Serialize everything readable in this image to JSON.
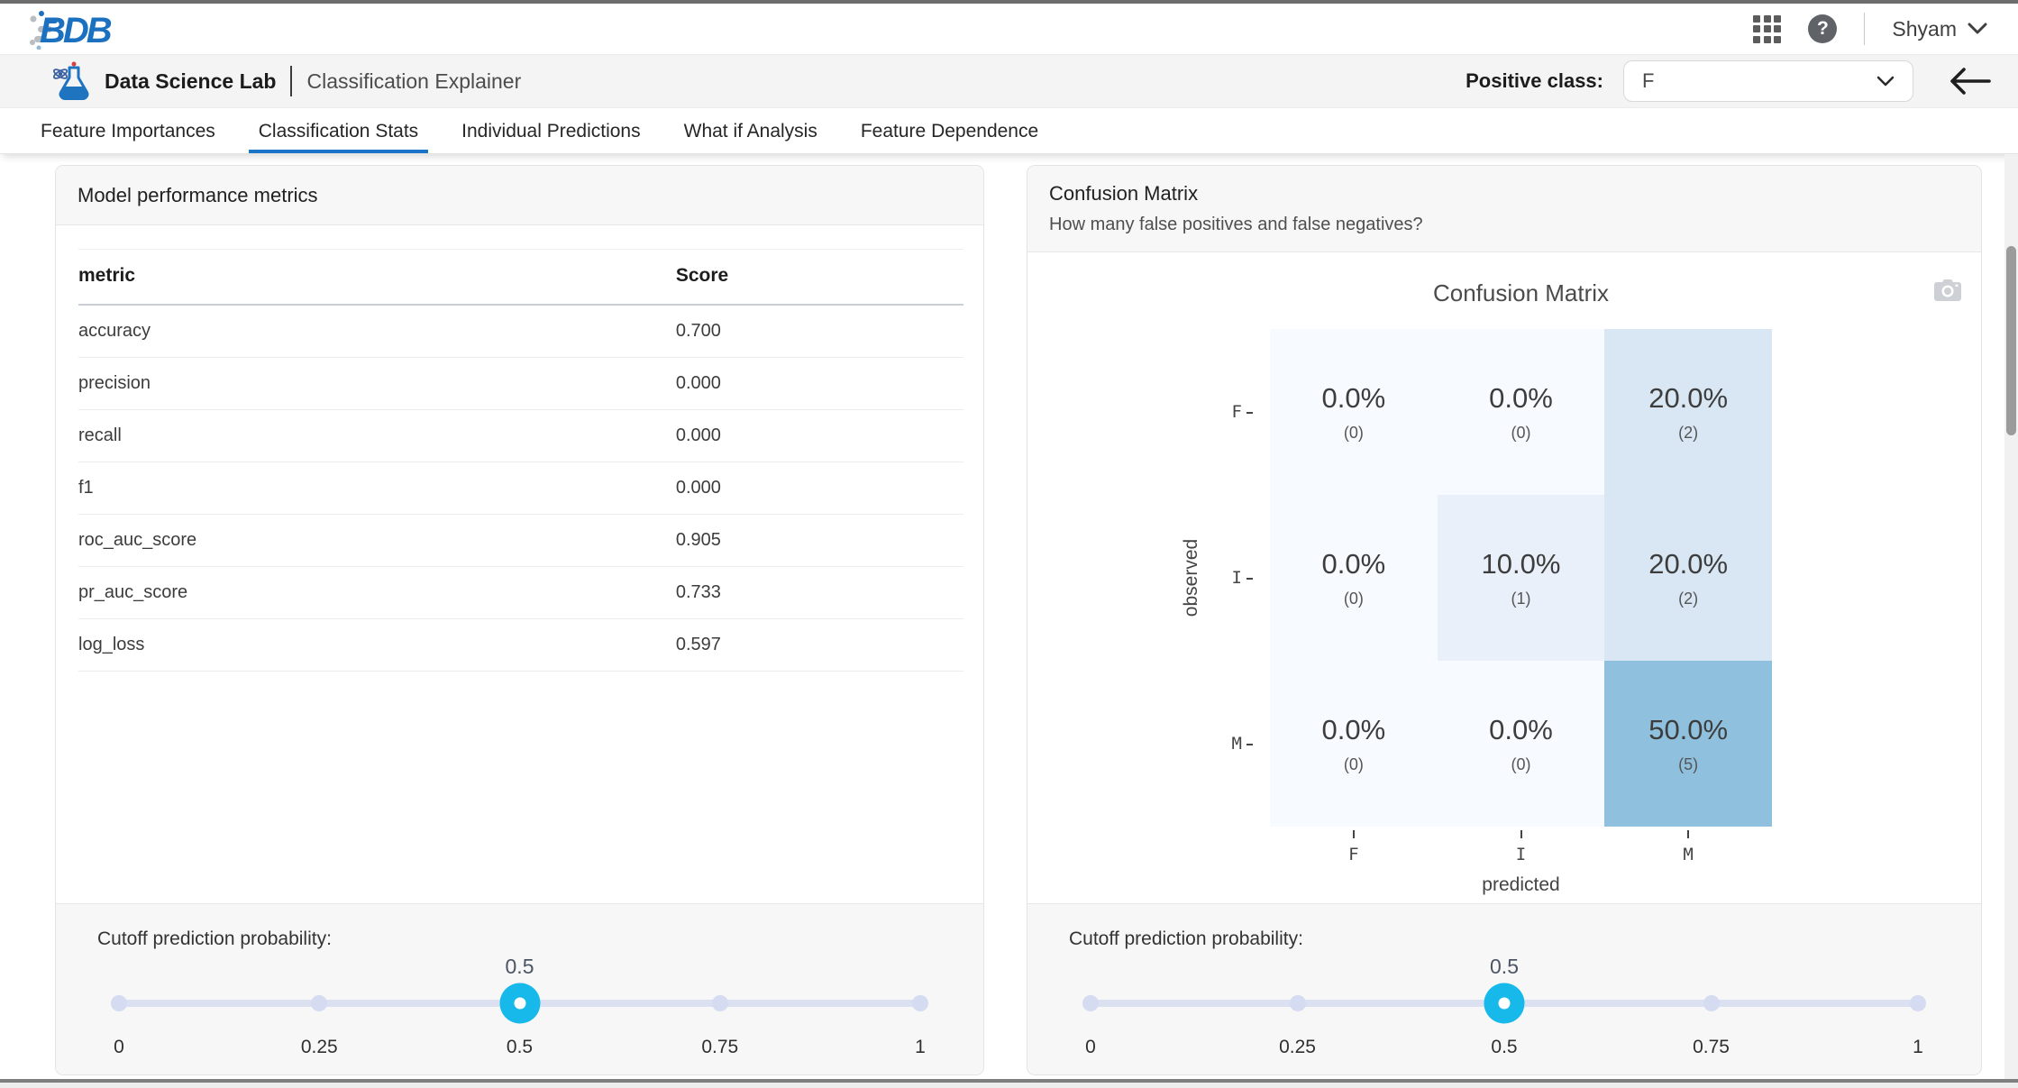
{
  "topbar": {
    "logo_text": "BDB",
    "help_glyph": "?",
    "user_name": "Shyam"
  },
  "header": {
    "app_name": "Data Science Lab",
    "page_title": "Classification Explainer",
    "positive_class_label": "Positive class:",
    "positive_class_value": "F"
  },
  "tabs": [
    {
      "label": "Feature Importances",
      "active": false
    },
    {
      "label": "Classification Stats",
      "active": true
    },
    {
      "label": "Individual Predictions",
      "active": false
    },
    {
      "label": "What if Analysis",
      "active": false
    },
    {
      "label": "Feature Dependence",
      "active": false
    }
  ],
  "left_panel": {
    "title": "Model performance metrics",
    "table": {
      "headers": [
        "metric",
        "Score"
      ],
      "rows": [
        [
          "accuracy",
          "0.700"
        ],
        [
          "precision",
          "0.000"
        ],
        [
          "recall",
          "0.000"
        ],
        [
          "f1",
          "0.000"
        ],
        [
          "roc_auc_score",
          "0.905"
        ],
        [
          "pr_auc_score",
          "0.733"
        ],
        [
          "log_loss",
          "0.597"
        ]
      ]
    }
  },
  "right_panel": {
    "title": "Confusion Matrix",
    "subtitle": "How many false positives and false negatives?"
  },
  "chart_data": {
    "type": "heatmap",
    "title": "Confusion Matrix",
    "x": [
      "F",
      "I",
      "M"
    ],
    "y": [
      "F",
      "I",
      "M"
    ],
    "xlabel": "predicted",
    "ylabel": "observed",
    "percent": [
      [
        0.0,
        0.0,
        20.0
      ],
      [
        0.0,
        10.0,
        20.0
      ],
      [
        0.0,
        0.0,
        50.0
      ]
    ],
    "counts": [
      [
        0,
        0,
        2
      ],
      [
        0,
        1,
        2
      ],
      [
        0,
        0,
        5
      ]
    ],
    "cell_colors": [
      [
        "#f7fafe",
        "#f7fafe",
        "#d9e7f5"
      ],
      [
        "#f7fafe",
        "#e9f0f9",
        "#d9e7f5"
      ],
      [
        "#f7fafe",
        "#f7fafe",
        "#8fc1de"
      ]
    ],
    "colorscale": "Blues",
    "legend": "none",
    "grid": false
  },
  "cutoff_slider": {
    "label": "Cutoff prediction probability:",
    "value": "0.5",
    "value_position": 0.5,
    "ticks": [
      "0",
      "0.25",
      "0.5",
      "0.75",
      "1"
    ],
    "handle_color": "#16b9ea",
    "track_color": "#dce1f2"
  },
  "colors": {
    "accent_blue": "#1b74c5",
    "brand_blue": "#1c70c0",
    "heatmap_high": "#8fc1de"
  }
}
